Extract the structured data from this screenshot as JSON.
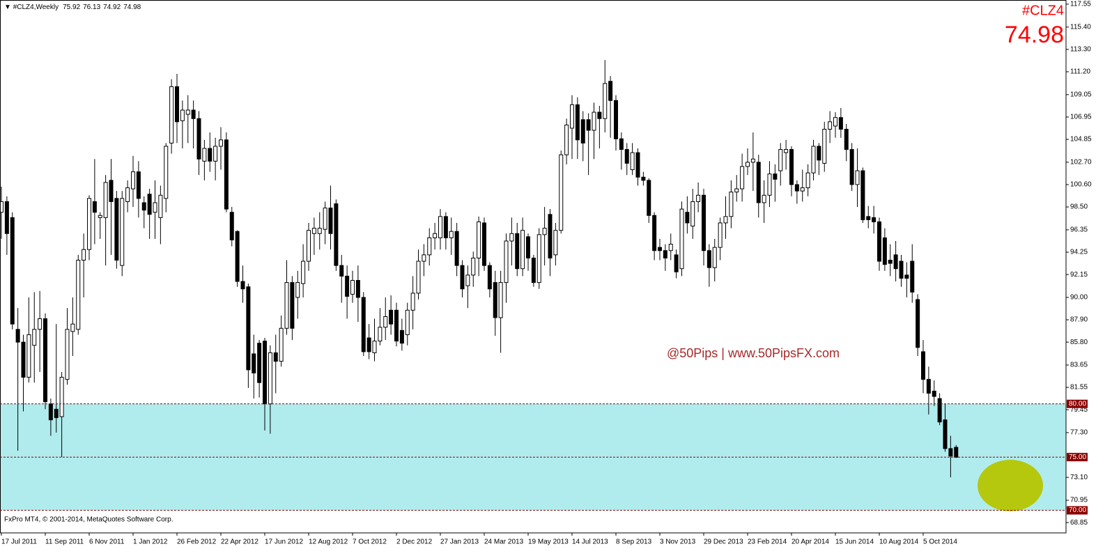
{
  "chart_data": {
    "type": "candlestick",
    "title": "#CLZ4,Weekly",
    "symbol": "#CLZ4",
    "footer": "FxPro MT4, © 2001-2014, MetaQuotes Software Corp.",
    "watermark": "@50Pips | www.50PipsFX.com",
    "categories": [
      "17 Jul 2011",
      null,
      null,
      null,
      null,
      null,
      null,
      null,
      "11 Sep 2011",
      null,
      null,
      null,
      null,
      null,
      null,
      null,
      "6 Nov 2011",
      null,
      null,
      null,
      null,
      null,
      null,
      null,
      "1 Jan 2012",
      null,
      null,
      null,
      null,
      null,
      null,
      null,
      "26 Feb 2012",
      null,
      null,
      null,
      null,
      null,
      null,
      null,
      "22 Apr 2012",
      null,
      null,
      null,
      null,
      null,
      null,
      null,
      "17 Jun 2012",
      null,
      null,
      null,
      null,
      null,
      null,
      null,
      "12 Aug 2012",
      null,
      null,
      null,
      null,
      null,
      null,
      null,
      "7 Oct 2012",
      null,
      null,
      null,
      null,
      null,
      null,
      null,
      "2 Dec 2012",
      null,
      null,
      null,
      null,
      null,
      null,
      null,
      "27 Jan 2013",
      null,
      null,
      null,
      null,
      null,
      null,
      null,
      "24 Mar 2013",
      null,
      null,
      null,
      null,
      null,
      null,
      null,
      "19 May 2013",
      null,
      null,
      null,
      null,
      null,
      null,
      null,
      "14 Jul 2013",
      null,
      null,
      null,
      null,
      null,
      null,
      null,
      "8 Sep 2013",
      null,
      null,
      null,
      null,
      null,
      null,
      null,
      "3 Nov 2013",
      null,
      null,
      null,
      null,
      null,
      null,
      null,
      "29 Dec 2013",
      null,
      null,
      null,
      null,
      null,
      null,
      null,
      "23 Feb 2014",
      null,
      null,
      null,
      null,
      null,
      null,
      null,
      "20 Apr 2014",
      null,
      null,
      null,
      null,
      null,
      null,
      null,
      "15 Jun 2014",
      null,
      null,
      null,
      null,
      null,
      null,
      null,
      "10 Aug 2014",
      null,
      null,
      null,
      null,
      null,
      null,
      null,
      "5 Oct 2014",
      null,
      null,
      null,
      null,
      null,
      null
    ],
    "open": [
      98.0,
      99.0,
      97.5,
      87.0,
      85.8,
      82.5,
      85.5,
      87.0,
      88.0,
      80.0,
      79.5,
      78.8,
      82.3,
      86.8,
      87.0,
      93.5,
      94.5,
      99.0,
      97.5,
      97.5,
      101.0,
      99.3,
      93.0,
      99.0,
      100.2,
      101.8,
      98.9,
      99.7,
      98.0,
      97.5,
      99.3,
      104.5,
      109.8,
      106.6,
      107.2,
      107.6,
      106.8,
      102.8,
      104.0,
      102.8,
      104.2,
      104.8,
      98.0,
      96.2,
      91.5,
      91.0,
      84.7,
      85.7,
      85.9,
      80.0,
      84.8,
      84.0,
      87.1,
      91.4,
      90.0,
      91.3,
      93.4,
      96.0,
      96.0,
      96.4,
      98.4,
      98.8,
      93.0,
      92.0,
      90.3,
      91.6,
      90.0,
      86.2,
      84.8,
      85.9,
      87.2,
      88.8,
      88.8,
      86.9,
      86.5,
      88.8,
      90.4,
      93.4,
      94.0,
      95.6,
      95.6,
      97.6,
      95.6,
      96.2,
      93.0,
      91.1,
      92.1,
      93.7,
      97.0,
      93.0,
      91.4,
      88.1,
      91.4,
      95.3,
      96.0,
      92.7,
      95.7,
      93.7,
      91.4,
      95.9,
      97.8,
      94.0,
      96.3,
      103.4,
      105.9,
      108.1,
      106.7,
      106.7,
      105.7,
      107.4,
      106.8,
      110.3,
      108.5,
      104.9,
      103.9,
      102.0,
      103.6,
      101.3,
      101.0,
      97.7,
      94.7,
      94.4,
      94.4,
      94.0,
      92.7,
      98.0,
      96.7,
      99.0,
      99.6,
      94.4,
      92.8,
      94.7,
      97.0,
      97.6,
      99.9,
      100.2,
      102.3,
      102.7,
      102.7,
      98.9,
      99.6,
      101.6,
      101.9,
      103.6,
      103.9,
      100.6,
      100.0,
      100.3,
      101.7,
      104.2,
      102.6,
      105.8,
      106.1,
      106.9,
      105.8,
      103.9,
      100.6,
      101.9,
      97.6,
      97.5,
      97.1,
      95.6,
      93.5,
      94.0,
      93.4,
      92.1,
      93.4,
      89.8,
      84.9,
      82.3,
      81.2,
      80.5,
      78.5,
      75.8,
      75.92
    ],
    "high": [
      100.4,
      99.5,
      98.0,
      89.0,
      86.5,
      90.0,
      90.5,
      90.6,
      88.5,
      80.5,
      87.5,
      83.0,
      89.0,
      90.0,
      94.0,
      96.0,
      99.6,
      103.0,
      98.0,
      101.5,
      103.0,
      100.0,
      100.0,
      101.0,
      103.3,
      102.8,
      99.5,
      100.2,
      101.0,
      100.5,
      104.5,
      110.5,
      111.0,
      108.5,
      109.0,
      108.5,
      107.5,
      104.8,
      105.5,
      105.0,
      106.0,
      105.5,
      98.5,
      96.3,
      93.0,
      91.3,
      86.5,
      86.0,
      86.2,
      85.5,
      86.5,
      88.3,
      93.5,
      92.0,
      92.5,
      95.0,
      97.0,
      97.5,
      98.0,
      99.0,
      100.5,
      99.2,
      94.0,
      93.0,
      92.5,
      93.0,
      90.5,
      87.5,
      88.0,
      89.0,
      90.0,
      90.2,
      89.5,
      88.0,
      89.5,
      92.0,
      94.5,
      95.0,
      96.5,
      97.0,
      98.3,
      98.0,
      97.5,
      97.0,
      93.5,
      93.0,
      94.3,
      97.6,
      97.5,
      93.3,
      92.5,
      92.5,
      96.0,
      97.5,
      97.0,
      97.5,
      96.0,
      94.0,
      96.5,
      98.5,
      98.3,
      97.0,
      103.8,
      106.8,
      109.0,
      108.8,
      107.5,
      107.3,
      108.3,
      108.0,
      112.3,
      110.8,
      109.0,
      105.5,
      104.5,
      104.5,
      104.0,
      101.8,
      101.2,
      98.0,
      95.5,
      95.0,
      96.0,
      94.5,
      99.0,
      99.5,
      100.2,
      100.8,
      100.2,
      95.0,
      95.5,
      97.5,
      99.5,
      101.0,
      101.5,
      103.5,
      104.0,
      105.5,
      103.4,
      101.0,
      102.8,
      102.5,
      104.5,
      104.8,
      104.2,
      101.0,
      102.0,
      102.5,
      104.8,
      104.5,
      106.5,
      107.5,
      107.4,
      107.8,
      106.3,
      104.5,
      104.0,
      102.2,
      98.6,
      98.6,
      97.5,
      96.5,
      95.0,
      95.3,
      94.0,
      93.3,
      95.0,
      90.3,
      86.0,
      83.5,
      82.2,
      81.0,
      80.0,
      77.0,
      76.13
    ],
    "low": [
      95.5,
      94.0,
      87.0,
      75.6,
      79.3,
      82.0,
      82.0,
      83.0,
      79.5,
      77.0,
      77.3,
      75.0,
      81.8,
      84.5,
      86.5,
      90.0,
      93.5,
      95.0,
      95.5,
      93.0,
      94.0,
      92.7,
      92.0,
      98.0,
      98.5,
      97.5,
      96.5,
      95.5,
      95.5,
      95.0,
      98.0,
      103.5,
      104.5,
      104.0,
      104.5,
      104.0,
      101.5,
      101.0,
      101.8,
      101.0,
      102.0,
      98.0,
      94.8,
      91.0,
      89.5,
      81.5,
      80.5,
      80.6,
      77.5,
      77.2,
      81.0,
      83.5,
      86.5,
      86.0,
      88.0,
      90.0,
      92.5,
      94.0,
      94.5,
      95.0,
      94.5,
      92.5,
      89.5,
      88.0,
      89.5,
      87.7,
      84.5,
      84.2,
      84.0,
      85.5,
      86.0,
      86.5,
      85.4,
      85.0,
      85.5,
      87.0,
      89.8,
      92.0,
      93.0,
      94.5,
      94.5,
      94.5,
      94.0,
      92.0,
      90.0,
      89.0,
      91.0,
      92.0,
      92.5,
      90.0,
      86.4,
      84.8,
      89.5,
      93.0,
      92.0,
      92.0,
      92.5,
      91.0,
      90.8,
      93.0,
      92.0,
      93.0,
      96.0,
      102.5,
      103.0,
      103.0,
      102.8,
      101.5,
      103.0,
      104.0,
      105.5,
      105.0,
      103.8,
      102.0,
      101.5,
      101.5,
      100.5,
      100.5,
      97.0,
      93.5,
      93.5,
      92.5,
      93.5,
      91.8,
      92.0,
      96.0,
      95.5,
      98.0,
      93.0,
      91.0,
      91.5,
      93.5,
      95.5,
      96.5,
      99.0,
      99.0,
      101.5,
      100.0,
      97.5,
      97.0,
      98.5,
      99.0,
      100.5,
      102.0,
      99.5,
      98.8,
      99.0,
      99.5,
      101.0,
      101.5,
      101.8,
      104.5,
      105.0,
      105.0,
      102.8,
      100.0,
      98.5,
      97.0,
      96.5,
      96.0,
      92.5,
      92.5,
      92.0,
      91.5,
      91.0,
      90.0,
      89.5,
      84.5,
      81.0,
      79.0,
      79.8,
      78.0,
      75.5,
      73.1,
      74.92
    ],
    "close": [
      99.0,
      96.0,
      87.5,
      85.8,
      82.5,
      86.5,
      87.0,
      88.0,
      80.2,
      78.5,
      78.7,
      82.5,
      87.0,
      87.5,
      93.5,
      94.5,
      99.3,
      98.0,
      97.7,
      100.8,
      99.0,
      93.5,
      99.3,
      100.3,
      101.8,
      99.3,
      98.2,
      97.8,
      98.9,
      99.6,
      104.2,
      109.8,
      106.5,
      107.6,
      107.6,
      106.8,
      103.0,
      104.0,
      102.8,
      104.2,
      104.8,
      98.3,
      95.4,
      91.5,
      90.8,
      83.2,
      82.9,
      82.0,
      80.0,
      84.8,
      84.0,
      87.1,
      91.4,
      87.1,
      91.4,
      93.4,
      96.3,
      96.5,
      96.5,
      98.4,
      96.0,
      93.0,
      92.0,
      90.1,
      91.6,
      90.0,
      84.9,
      84.9,
      85.9,
      87.2,
      88.2,
      87.5,
      85.9,
      85.7,
      88.8,
      90.4,
      93.4,
      94.0,
      95.6,
      96.0,
      97.6,
      95.6,
      96.2,
      93.0,
      90.8,
      92.1,
      93.7,
      97.1,
      93.0,
      90.8,
      88.1,
      91.4,
      95.3,
      96.0,
      92.7,
      96.3,
      93.7,
      91.4,
      95.9,
      96.5,
      93.7,
      96.3,
      103.4,
      106.2,
      108.1,
      104.8,
      104.5,
      105.7,
      107.4,
      106.8,
      110.1,
      108.5,
      104.9,
      103.9,
      102.6,
      103.6,
      101.3,
      101.0,
      97.7,
      94.4,
      94.4,
      93.7,
      95.0,
      92.4,
      98.3,
      97.0,
      99.0,
      99.6,
      94.4,
      92.8,
      94.7,
      97.0,
      97.6,
      99.9,
      100.2,
      102.3,
      102.7,
      103.0,
      98.9,
      99.6,
      101.6,
      101.1,
      103.9,
      103.9,
      100.6,
      100.0,
      100.3,
      101.7,
      104.2,
      102.9,
      105.8,
      106.5,
      106.9,
      105.8,
      103.9,
      100.6,
      101.9,
      97.3,
      97.3,
      97.1,
      93.4,
      93.1,
      93.2,
      92.7,
      91.8,
      91.8,
      90.5,
      85.3,
      82.3,
      81.0,
      80.7,
      78.3,
      75.8,
      75.1,
      74.98
    ],
    "up_color": "#ffffff",
    "down_color": "#000000",
    "ylim": [
      67.88,
      117.94
    ],
    "yticks": [
      {
        "value": 117.55,
        "label": "117.55"
      },
      {
        "value": 115.4,
        "label": "115.40"
      },
      {
        "value": 113.3,
        "label": "113.30"
      },
      {
        "value": 111.2,
        "label": "111.20"
      },
      {
        "value": 109.05,
        "label": "109.05"
      },
      {
        "value": 106.95,
        "label": "106.95"
      },
      {
        "value": 104.85,
        "label": "104.85"
      },
      {
        "value": 102.7,
        "label": "102.70"
      },
      {
        "value": 100.6,
        "label": "100.60"
      },
      {
        "value": 98.5,
        "label": "98.50"
      },
      {
        "value": 96.35,
        "label": "96.35"
      },
      {
        "value": 94.25,
        "label": "94.25"
      },
      {
        "value": 92.15,
        "label": "92.15"
      },
      {
        "value": 90,
        "label": "90.00"
      },
      {
        "value": 87.9,
        "label": "87.90"
      },
      {
        "value": 85.8,
        "label": "85.80"
      },
      {
        "value": 83.65,
        "label": "83.65"
      },
      {
        "value": 81.55,
        "label": "81.55"
      },
      {
        "value": 79.45,
        "label": "79.45"
      },
      {
        "value": 77.3,
        "label": "77.30"
      },
      {
        "value": 73.1,
        "label": "73.10"
      },
      {
        "value": 70.95,
        "label": "70.95"
      },
      {
        "value": 68.85,
        "label": "68.85"
      }
    ],
    "levels": [
      {
        "value": 80,
        "label": "80.00"
      },
      {
        "value": 75,
        "label": "75.00"
      },
      {
        "value": 70,
        "label": "70.00"
      }
    ],
    "level_color": "#8b0000",
    "zone_color": "#b0ecee",
    "price_color": "#ff0000"
  }
}
